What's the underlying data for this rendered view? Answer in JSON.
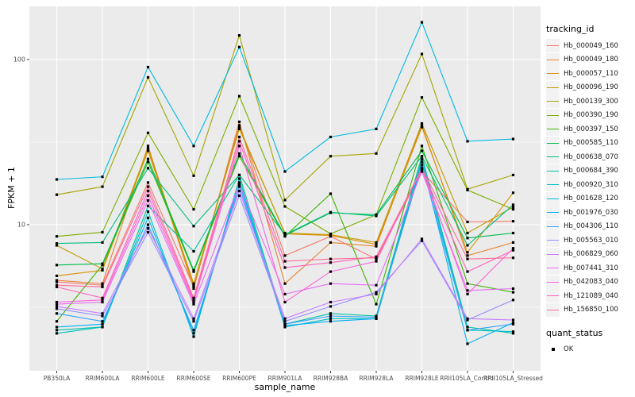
{
  "chart_data": {
    "type": "line",
    "xlabel": "sample_name",
    "ylabel": "FPKM + 1",
    "y_scale": "log10",
    "y_major_ticks": [
      10,
      100
    ],
    "y_minor_ticks": [
      3.162,
      31.62
    ],
    "grid": true,
    "panel_bg": "#EBEBEB",
    "grid_color": "#FFFFFF",
    "tick_text_color": "#4D4D4D",
    "marker": "black-square",
    "x_categories": [
      "PB350LA",
      "RRIM600LA",
      "RRIM600LE",
      "RRIM600SE",
      "RRIM600PE",
      "RRIM901LA",
      "RRIM928BA",
      "RRIM928LA",
      "RRIM928LE",
      "RRII105LA_Control",
      "RRII105LA_Stressed"
    ],
    "legend_color": {
      "title": "tracking_id",
      "position": "right"
    },
    "legend_shape": {
      "title": "quant_status",
      "items": [
        {
          "label": "OK",
          "marker": "black-square"
        }
      ]
    },
    "series": [
      {
        "name": "Hb_000049_160",
        "color": "#F8766D",
        "values": [
          4.5,
          4.3,
          18,
          4.2,
          40,
          6.5,
          8.5,
          6.2,
          21,
          10.4,
          10.5
        ]
      },
      {
        "name": "Hb_000049_180",
        "color": "#EA8331",
        "values": [
          4.6,
          4.4,
          30,
          4.1,
          42,
          4.4,
          7.8,
          7.4,
          40,
          6.5,
          7.8
        ]
      },
      {
        "name": "Hb_000057_110",
        "color": "#D89000",
        "values": [
          4.9,
          5.3,
          28,
          4.3,
          39,
          8.8,
          8.6,
          7.6,
          39,
          6.8,
          15.6
        ]
      },
      {
        "name": "Hb_000096_190",
        "color": "#C09B00",
        "values": [
          7.5,
          5.4,
          29,
          4.4,
          38,
          8.9,
          8.7,
          7.8,
          41,
          8.9,
          12.8
        ]
      },
      {
        "name": "Hb_000139_300",
        "color": "#A3A500",
        "values": [
          15.2,
          17,
          78,
          19.8,
          140,
          14.1,
          26,
          27,
          108,
          16.4,
          20
        ]
      },
      {
        "name": "Hb_000390_190",
        "color": "#7CAE00",
        "values": [
          8.5,
          9.0,
          36,
          12.4,
          60,
          12.9,
          8.8,
          11.5,
          59,
          16.2,
          12.4
        ]
      },
      {
        "name": "Hb_000397_150",
        "color": "#39B600",
        "values": [
          2.6,
          5.7,
          24,
          5.2,
          26,
          8.5,
          15.4,
          3.3,
          30,
          4.4,
          3.9
        ]
      },
      {
        "name": "Hb_000585_110",
        "color": "#00BB4E",
        "values": [
          5.7,
          5.8,
          25,
          5.3,
          27,
          8.6,
          11.8,
          11.5,
          28,
          8.3,
          8.9
        ]
      },
      {
        "name": "Hb_000638_070",
        "color": "#00BF7D",
        "values": [
          7.7,
          7.8,
          22,
          9.8,
          20,
          8.7,
          11.9,
          11.3,
          26,
          7.5,
          13.2
        ]
      },
      {
        "name": "Hb_000684_390",
        "color": "#00C1A3",
        "values": [
          2.3,
          2.4,
          13,
          6.9,
          20,
          2.5,
          2.9,
          2.8,
          26,
          2.4,
          2.2
        ]
      },
      {
        "name": "Hb_000920_310",
        "color": "#00BFC4",
        "values": [
          2.2,
          2.4,
          12,
          2.1,
          19,
          2.4,
          2.7,
          2.7,
          25,
          2.3,
          2.25
        ]
      },
      {
        "name": "Hb_001628_120",
        "color": "#00BAE0",
        "values": [
          18.8,
          19.5,
          90,
          30,
          119,
          21,
          34,
          38,
          168,
          32,
          33
        ]
      },
      {
        "name": "Hb_001976_030",
        "color": "#00B0F6",
        "values": [
          2.4,
          2.5,
          11,
          2.2,
          18,
          2.45,
          2.6,
          2.7,
          24,
          1.9,
          2.55
        ]
      },
      {
        "name": "Hb_004306_110",
        "color": "#35A2FF",
        "values": [
          2.9,
          2.6,
          10,
          2.3,
          17,
          2.5,
          2.8,
          2.75,
          23,
          2.3,
          2.5
        ]
      },
      {
        "name": "Hb_005563_010",
        "color": "#9590FF",
        "values": [
          3.1,
          2.8,
          9.0,
          2.6,
          15,
          2.6,
          3.2,
          3.9,
          8.0,
          2.65,
          3.5
        ]
      },
      {
        "name": "Hb_006829_060",
        "color": "#C77CFF",
        "values": [
          3.2,
          2.9,
          9.5,
          2.7,
          16,
          2.7,
          3.4,
          3.8,
          8.2,
          2.7,
          2.65
        ]
      },
      {
        "name": "Hb_007441_310",
        "color": "#E76BF3",
        "values": [
          3.3,
          3.4,
          14,
          3.3,
          17.6,
          3.8,
          4.4,
          4.3,
          21,
          4.0,
          4.1
        ]
      },
      {
        "name": "Hb_042083_040",
        "color": "#FA62DB",
        "values": [
          3.4,
          3.5,
          15,
          3.4,
          30,
          3.4,
          5.2,
          6.0,
          22,
          3.8,
          7.2
        ]
      },
      {
        "name": "Hb_121089_040",
        "color": "#FF62BC",
        "values": [
          4.2,
          3.6,
          16,
          3.5,
          32,
          5.5,
          5.9,
          6.4,
          21.5,
          5.2,
          7.0
        ]
      },
      {
        "name": "Hb_156850_100",
        "color": "#FF6A98",
        "values": [
          4.3,
          4.2,
          17,
          3.6,
          34,
          6.0,
          6.2,
          6.3,
          22,
          6.2,
          6.3
        ]
      }
    ]
  }
}
